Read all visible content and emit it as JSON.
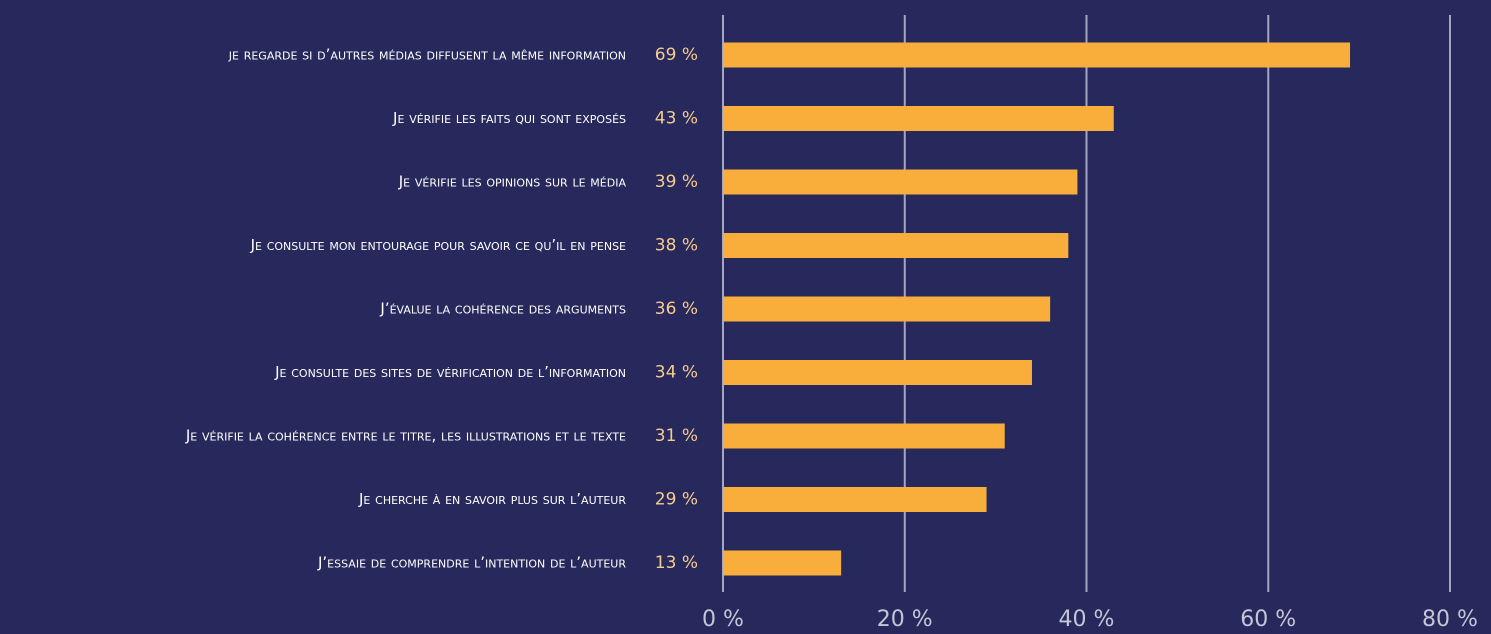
{
  "chart_data": {
    "type": "barh",
    "categories": [
      "je regarde si d’autres médias diffusent la même information",
      "Je vérifie les faits qui sont exposés",
      "Je vérifie les opinions sur le média",
      "Je consulte mon entourage pour savoir ce qu’il en pense",
      "J’évalue la cohérence des arguments",
      "Je consulte des sites de vérification de l’information",
      "Je vérifie la cohérence entre le titre, les illustrations et le texte",
      "Je cherche à en savoir plus sur l’auteur",
      "J’essaie de comprendre l’intention de l’auteur"
    ],
    "values": [
      69,
      43,
      39,
      38,
      36,
      34,
      31,
      29,
      13
    ],
    "value_labels": [
      "69 %",
      "43 %",
      "39 %",
      "38 %",
      "36 %",
      "34 %",
      "31 %",
      "29 %",
      "13 %"
    ],
    "color": "#f9ae3b",
    "xlim": [
      0,
      80
    ],
    "xticks": [
      {
        "value": 0,
        "label": "0 %"
      },
      {
        "value": 20,
        "label": "20 %"
      },
      {
        "value": 40,
        "label": "40 %"
      },
      {
        "value": 60,
        "label": "60 %"
      },
      {
        "value": 80,
        "label": "80 %"
      }
    ],
    "grid": true
  }
}
